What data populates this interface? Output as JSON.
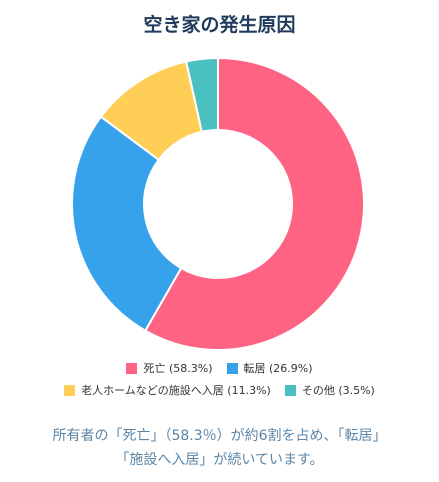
{
  "chart_data": {
    "type": "pie",
    "variant": "donut",
    "title": "空き家の発生原因",
    "categories": [
      "死亡",
      "転居",
      "老人ホームなどの施設へ入居",
      "その他"
    ],
    "values": [
      58.3,
      26.9,
      11.3,
      3.5
    ],
    "unit": "%",
    "colors": [
      "#ff6384",
      "#36a2eb",
      "#ffce56",
      "#4bc0c0"
    ],
    "legend": {
      "position": "bottom",
      "labels": [
        "死亡 (58.3%)",
        "転居 (26.9%)",
        "老人ホームなどの施設へ入居 (11.3%)",
        "その他 (3.5%)"
      ]
    }
  },
  "caption": {
    "line1": "所有者の「死亡」（58.3％）が約6割を占め、「転居」",
    "line2": "「施設へ入居」が続いています。"
  }
}
